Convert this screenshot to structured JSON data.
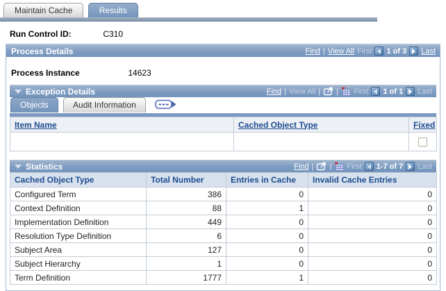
{
  "ui": {
    "sep": "|"
  },
  "tabs": [
    {
      "label": "Maintain Cache",
      "active": false
    },
    {
      "label": "Results",
      "active": true
    }
  ],
  "run_control": {
    "label": "Run Control ID:",
    "value": "C310"
  },
  "process_details": {
    "title": "Process Details",
    "nav": {
      "find": "Find",
      "view_all": "View All",
      "first": "First",
      "counter": "1 of 3",
      "last": "Last"
    },
    "process_instance": {
      "label": "Process Instance",
      "value": "14623"
    }
  },
  "exception_details": {
    "title": "Exception Details",
    "nav": {
      "find": "Find",
      "view_all": "View All",
      "first": "First",
      "counter": "1 of 1",
      "last": "Last"
    },
    "tabs": [
      {
        "label": "Objects",
        "active": true
      },
      {
        "label": "Audit Information",
        "active": false
      }
    ],
    "grid": {
      "columns": [
        "Item Name",
        "Cached Object Type",
        "Fixed"
      ],
      "rows": [
        {
          "item_name": "",
          "cached_object_type": "",
          "fixed": false
        }
      ]
    }
  },
  "statistics": {
    "title": "Statistics",
    "nav": {
      "find": "Find",
      "first": "First",
      "counter": "1-7 of 7",
      "last": "Last"
    },
    "grid": {
      "columns": [
        "Cached Object Type",
        "Total Number",
        "Entries in Cache",
        "Invalid Cache Entries"
      ],
      "rows": [
        [
          "Configured Term",
          "386",
          "0",
          "0"
        ],
        [
          "Context Definition",
          "88",
          "1",
          "0"
        ],
        [
          "Implementation Definition",
          "449",
          "0",
          "0"
        ],
        [
          "Resolution Type Definition",
          "6",
          "0",
          "0"
        ],
        [
          "Subject Area",
          "127",
          "0",
          "0"
        ],
        [
          "Subject Hierarchy",
          "1",
          "0",
          "0"
        ],
        [
          "Term Definition",
          "1777",
          "1",
          "0"
        ]
      ]
    }
  },
  "colors": {
    "header_blue": "#7E9CC2",
    "navy_link": "#1D4B8F",
    "stats_header_bg": "#D8E2EE",
    "disabled_nav": "#C6D2E3",
    "tab_bar": "#7E92AB"
  }
}
